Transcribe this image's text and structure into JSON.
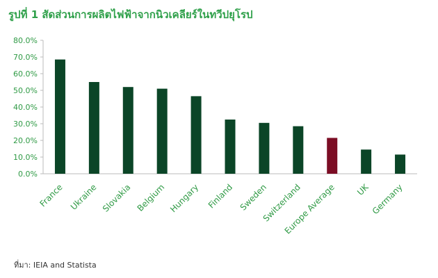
{
  "chart_data": {
    "type": "bar",
    "title": "รูปที่ 1 สัดส่วนการผลิตไฟฟ้าจากนิวเคลียร์ในทวีปยุโรป",
    "source": "ที่มา: IEIA and Statista",
    "categories": [
      "France",
      "Ukraine",
      "Slovakia",
      "Belgium",
      "Hungary",
      "Finland",
      "Sweden",
      "Switzerland",
      "Europe Average",
      "UK",
      "Germany"
    ],
    "values": [
      68.5,
      55,
      52,
      51,
      46.5,
      32.5,
      30.5,
      28.5,
      21.5,
      14.5,
      11.5
    ],
    "colors": [
      "#0b4527",
      "#0b4527",
      "#0b4527",
      "#0b4527",
      "#0b4527",
      "#0b4527",
      "#0b4527",
      "#0b4527",
      "#7b0d24",
      "#0b4527",
      "#0b4527"
    ],
    "ylim": [
      0,
      80
    ],
    "yticks": [
      {
        "value": 0,
        "label": "0.0%"
      },
      {
        "value": 10,
        "label": "10.0%"
      },
      {
        "value": 20,
        "label": "20.0%"
      },
      {
        "value": 30,
        "label": "30.0%"
      },
      {
        "value": 40,
        "label": "40.0%"
      },
      {
        "value": 50,
        "label": "50.0%"
      },
      {
        "value": 60,
        "label": "60.0%"
      },
      {
        "value": 70,
        "label": "70.0%"
      },
      {
        "value": 80,
        "label": "80.0%"
      }
    ],
    "grid": false
  }
}
